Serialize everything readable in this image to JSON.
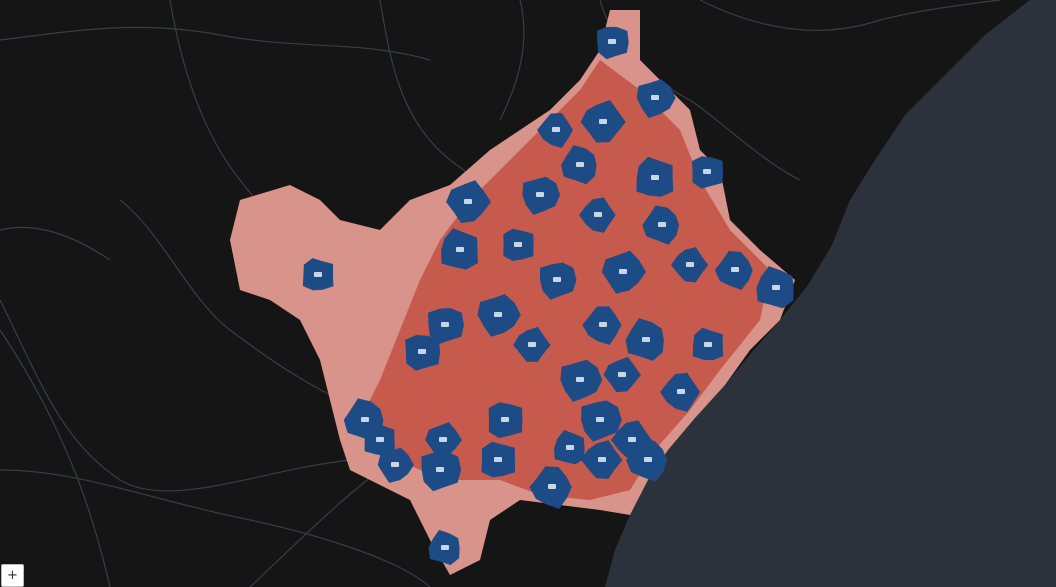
{
  "map": {
    "zoom_in_label": "+"
  }
}
